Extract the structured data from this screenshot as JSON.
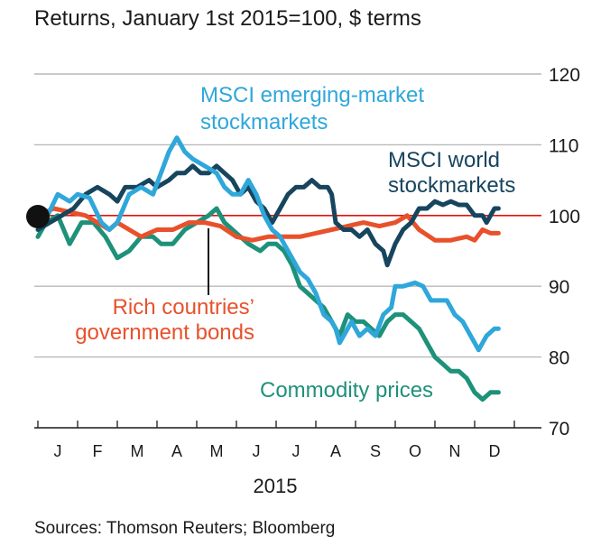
{
  "chart_data": {
    "type": "line",
    "title": "Returns, January 1st 2015=100, $ terms",
    "source": "Sources: Thomson Reuters; Bloomberg",
    "year_label": "2015",
    "x_months": [
      "J",
      "F",
      "M",
      "A",
      "M",
      "J",
      "J",
      "A",
      "S",
      "O",
      "N",
      "D"
    ],
    "x_range": [
      0,
      12
    ],
    "ylim": [
      70,
      120
    ],
    "y_ticks": [
      120,
      110,
      100,
      90,
      80,
      70
    ],
    "baseline": 100,
    "grid": true,
    "series": [
      {
        "name": "MSCI emerging-market stockmarkets",
        "label_lines": [
          "MSCI emerging-market",
          "stockmarkets"
        ],
        "color": "#2fa7da",
        "points": [
          [
            0,
            99
          ],
          [
            0.2,
            99.5
          ],
          [
            0.5,
            103
          ],
          [
            0.8,
            102
          ],
          [
            1.0,
            103
          ],
          [
            1.3,
            102.5
          ],
          [
            1.6,
            99
          ],
          [
            1.8,
            98
          ],
          [
            2.0,
            99
          ],
          [
            2.3,
            103
          ],
          [
            2.6,
            104
          ],
          [
            2.9,
            103
          ],
          [
            3.1,
            106
          ],
          [
            3.3,
            109
          ],
          [
            3.5,
            111
          ],
          [
            3.7,
            109
          ],
          [
            3.9,
            108
          ],
          [
            4.2,
            107
          ],
          [
            4.5,
            106
          ],
          [
            4.7,
            104
          ],
          [
            4.9,
            103
          ],
          [
            5.1,
            103
          ],
          [
            5.3,
            105
          ],
          [
            5.5,
            103
          ],
          [
            5.7,
            100
          ],
          [
            5.9,
            98
          ],
          [
            6.1,
            97
          ],
          [
            6.2,
            96
          ],
          [
            6.4,
            94
          ],
          [
            6.6,
            92
          ],
          [
            6.8,
            91
          ],
          [
            7.0,
            89
          ],
          [
            7.2,
            86
          ],
          [
            7.4,
            85
          ],
          [
            7.5,
            84
          ],
          [
            7.6,
            82
          ],
          [
            7.7,
            83
          ],
          [
            7.9,
            85
          ],
          [
            8.1,
            83
          ],
          [
            8.3,
            84
          ],
          [
            8.5,
            83
          ],
          [
            8.7,
            86
          ],
          [
            8.9,
            87
          ],
          [
            9.0,
            90
          ],
          [
            9.2,
            90
          ],
          [
            9.5,
            90.5
          ],
          [
            9.7,
            90
          ],
          [
            9.9,
            88
          ],
          [
            10.1,
            88
          ],
          [
            10.3,
            88
          ],
          [
            10.5,
            86
          ],
          [
            10.7,
            85
          ],
          [
            10.9,
            83
          ],
          [
            11.0,
            82
          ],
          [
            11.1,
            81
          ],
          [
            11.3,
            83
          ],
          [
            11.5,
            84
          ],
          [
            11.6,
            84
          ]
        ]
      },
      {
        "name": "MSCI world stockmarkets",
        "label_lines": [
          "MSCI world",
          "stockmarkets"
        ],
        "color": "#17455e",
        "points": [
          [
            0,
            98
          ],
          [
            0.3,
            99
          ],
          [
            0.6,
            100
          ],
          [
            0.9,
            101
          ],
          [
            1.2,
            103
          ],
          [
            1.5,
            104
          ],
          [
            1.8,
            103
          ],
          [
            2.0,
            102
          ],
          [
            2.2,
            104
          ],
          [
            2.5,
            104
          ],
          [
            2.8,
            105
          ],
          [
            3.0,
            104
          ],
          [
            3.3,
            105
          ],
          [
            3.5,
            106
          ],
          [
            3.7,
            106
          ],
          [
            3.9,
            107
          ],
          [
            4.1,
            106
          ],
          [
            4.3,
            106
          ],
          [
            4.5,
            107
          ],
          [
            4.7,
            106
          ],
          [
            4.9,
            105
          ],
          [
            5.1,
            103
          ],
          [
            5.3,
            104
          ],
          [
            5.5,
            102
          ],
          [
            5.7,
            101
          ],
          [
            5.9,
            99
          ],
          [
            6.1,
            101
          ],
          [
            6.3,
            103
          ],
          [
            6.5,
            104
          ],
          [
            6.7,
            104
          ],
          [
            6.9,
            105
          ],
          [
            7.1,
            104
          ],
          [
            7.3,
            104
          ],
          [
            7.4,
            103
          ],
          [
            7.5,
            99
          ],
          [
            7.7,
            98
          ],
          [
            7.9,
            98
          ],
          [
            8.1,
            97
          ],
          [
            8.3,
            98
          ],
          [
            8.5,
            96
          ],
          [
            8.7,
            95
          ],
          [
            8.8,
            93
          ],
          [
            9.0,
            96
          ],
          [
            9.2,
            98
          ],
          [
            9.4,
            99
          ],
          [
            9.6,
            101
          ],
          [
            9.8,
            101
          ],
          [
            10.0,
            102
          ],
          [
            10.2,
            101.5
          ],
          [
            10.4,
            102
          ],
          [
            10.6,
            101.5
          ],
          [
            10.8,
            101.5
          ],
          [
            11.0,
            100
          ],
          [
            11.2,
            100
          ],
          [
            11.3,
            99
          ],
          [
            11.4,
            100
          ],
          [
            11.5,
            101
          ],
          [
            11.6,
            101
          ]
        ]
      },
      {
        "name": "Rich countries' government bonds",
        "label_lines": [
          "Rich countries’",
          "government bonds"
        ],
        "color": "#e8512b",
        "points": [
          [
            0,
            100
          ],
          [
            0.4,
            101
          ],
          [
            0.8,
            100.5
          ],
          [
            1.2,
            100
          ],
          [
            1.5,
            99
          ],
          [
            1.8,
            98
          ],
          [
            2.0,
            99
          ],
          [
            2.3,
            98
          ],
          [
            2.6,
            97
          ],
          [
            3.0,
            98
          ],
          [
            3.4,
            98
          ],
          [
            3.8,
            99
          ],
          [
            4.2,
            99
          ],
          [
            4.6,
            98.5
          ],
          [
            5.0,
            97
          ],
          [
            5.4,
            96.5
          ],
          [
            5.8,
            97
          ],
          [
            6.2,
            97
          ],
          [
            6.6,
            97
          ],
          [
            7.0,
            97.5
          ],
          [
            7.4,
            98
          ],
          [
            7.8,
            98.5
          ],
          [
            8.2,
            99
          ],
          [
            8.6,
            98.5
          ],
          [
            9.0,
            99
          ],
          [
            9.3,
            100
          ],
          [
            9.6,
            98
          ],
          [
            10.0,
            96.5
          ],
          [
            10.4,
            96.5
          ],
          [
            10.8,
            97
          ],
          [
            11.0,
            96.5
          ],
          [
            11.2,
            98
          ],
          [
            11.4,
            97.5
          ],
          [
            11.6,
            97.5
          ]
        ]
      },
      {
        "name": "Commodity prices",
        "label_lines": [
          "Commodity prices"
        ],
        "color": "#1e917a",
        "points": [
          [
            0,
            97
          ],
          [
            0.2,
            99
          ],
          [
            0.5,
            100
          ],
          [
            0.8,
            96
          ],
          [
            1.1,
            99
          ],
          [
            1.4,
            99
          ],
          [
            1.7,
            97
          ],
          [
            2.0,
            94
          ],
          [
            2.3,
            95
          ],
          [
            2.6,
            97
          ],
          [
            2.9,
            97
          ],
          [
            3.1,
            96
          ],
          [
            3.4,
            96
          ],
          [
            3.7,
            98
          ],
          [
            4.0,
            99
          ],
          [
            4.3,
            100
          ],
          [
            4.5,
            101
          ],
          [
            4.7,
            99
          ],
          [
            4.9,
            98
          ],
          [
            5.1,
            97
          ],
          [
            5.3,
            96
          ],
          [
            5.6,
            95
          ],
          [
            5.8,
            96
          ],
          [
            6.0,
            96
          ],
          [
            6.2,
            95
          ],
          [
            6.4,
            93
          ],
          [
            6.6,
            90
          ],
          [
            6.8,
            89
          ],
          [
            7.0,
            88
          ],
          [
            7.2,
            87
          ],
          [
            7.4,
            85
          ],
          [
            7.6,
            83
          ],
          [
            7.8,
            86
          ],
          [
            8.0,
            85
          ],
          [
            8.2,
            85
          ],
          [
            8.4,
            84
          ],
          [
            8.6,
            83
          ],
          [
            8.8,
            85
          ],
          [
            9.0,
            86
          ],
          [
            9.2,
            86
          ],
          [
            9.4,
            85
          ],
          [
            9.6,
            84
          ],
          [
            9.8,
            82
          ],
          [
            10.0,
            80
          ],
          [
            10.2,
            79
          ],
          [
            10.4,
            78
          ],
          [
            10.6,
            78
          ],
          [
            10.8,
            77
          ],
          [
            11.0,
            75
          ],
          [
            11.2,
            74
          ],
          [
            11.4,
            75
          ],
          [
            11.6,
            75
          ]
        ]
      }
    ]
  }
}
